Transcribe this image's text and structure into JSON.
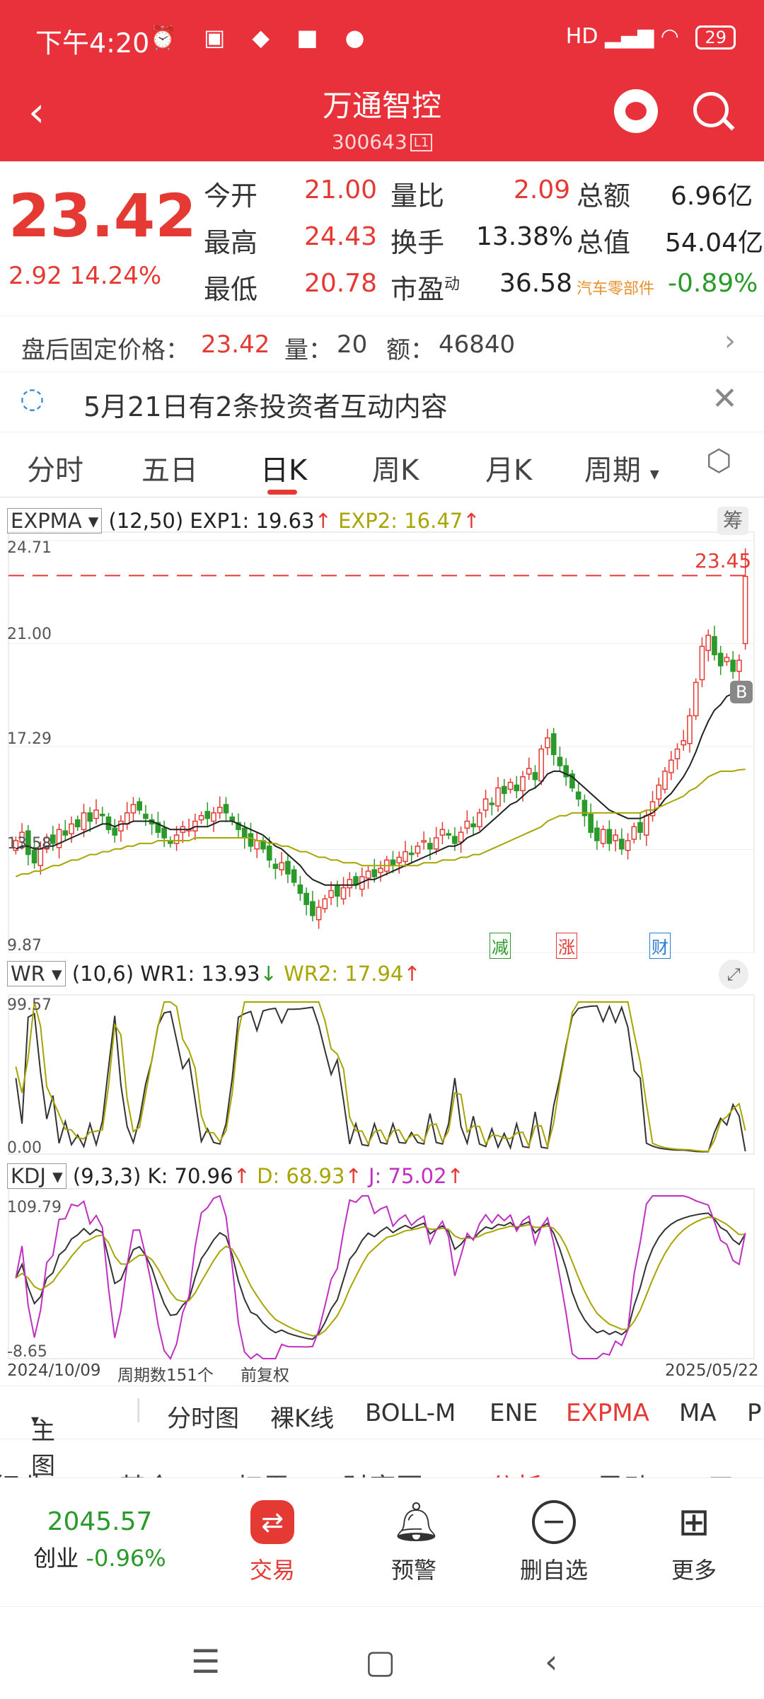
{
  "status_bar": {
    "time": "下午4:20",
    "battery": "29",
    "network": "HD"
  },
  "header": {
    "title": "万通智控",
    "code": "300643",
    "level": "L1"
  },
  "quote": {
    "price": "23.42",
    "change": "2.92",
    "change_pct": "14.24%",
    "rows": [
      {
        "l1": "今开",
        "v1": "21.00",
        "l2": "量比",
        "v2": "2.09",
        "l3": "总额",
        "v3": "6.96亿"
      },
      {
        "l1": "最高",
        "v1": "24.43",
        "l2": "换手",
        "v2": "13.38%",
        "l3": "总值",
        "v3": "54.04亿"
      },
      {
        "l1": "最低",
        "v1": "20.78",
        "l2": "市盈",
        "l2sup": "动",
        "v2": "36.58",
        "l3": "汽车零部件",
        "v3": "-0.89%"
      }
    ]
  },
  "after_hours": {
    "label": "盘后固定价格：",
    "price": "23.42",
    "vol_label": "量：",
    "vol": "20",
    "amt_label": "额：",
    "amt": "46840"
  },
  "notice": {
    "text": "5月21日有2条投资者互动内容"
  },
  "tabs": [
    "分时",
    "五日",
    "日K",
    "周K",
    "月K",
    "周期"
  ],
  "active_tab": "日K",
  "indicators": {
    "expma": {
      "name": "EXPMA",
      "params": "(12,50)",
      "l1": "EXP1: 19.63",
      "l2": "EXP2: 16.47",
      "badge": "筹"
    },
    "wr": {
      "name": "WR",
      "params": "(10,6)",
      "l1": "WR1: 13.93",
      "l2": "WR2: 17.94"
    },
    "kdj": {
      "name": "KDJ",
      "params": "(9,3,3)",
      "l1": "K: 70.96",
      "l2": "D: 68.93",
      "l3": "J: 75.02"
    }
  },
  "chart_data": {
    "type": "candlestick",
    "price_axis": {
      "ticks": [
        "24.71",
        "21.00",
        "17.29",
        "13.58",
        "9.87"
      ],
      "ylim": [
        9.87,
        24.71
      ]
    },
    "ref_line": "23.45",
    "markers": [
      "减",
      "涨",
      "财",
      "B"
    ],
    "wr_axis": [
      "99.57",
      "0.00"
    ],
    "kdj_axis": [
      "109.79",
      "-8.65"
    ],
    "start_date": "2024/10/09",
    "end_date": "2025/05/22",
    "period_count": "周期数151个",
    "adjust": "前复权",
    "closes": [
      13.9,
      14.2,
      13.4,
      13.1,
      13.6,
      14.0,
      13.8,
      14.3,
      14.1,
      14.5,
      14.4,
      14.9,
      14.6,
      15.0,
      14.8,
      14.3,
      14.1,
      14.6,
      14.9,
      15.2,
      15.0,
      14.7,
      14.5,
      14.2,
      14.0,
      13.8,
      14.1,
      14.4,
      14.3,
      14.6,
      14.8,
      14.7,
      14.9,
      15.1,
      14.9,
      14.6,
      14.3,
      14.0,
      13.7,
      13.9,
      13.6,
      13.2,
      12.9,
      13.1,
      12.7,
      12.4,
      12.0,
      11.6,
      11.2,
      11.5,
      11.8,
      12.1,
      11.9,
      12.2,
      12.5,
      12.3,
      12.6,
      12.8,
      12.6,
      12.9,
      13.2,
      13.0,
      13.3,
      13.5,
      13.4,
      13.7,
      13.9,
      13.6,
      14.0,
      14.3,
      14.1,
      13.8,
      14.2,
      14.6,
      14.4,
      14.9,
      15.4,
      15.2,
      15.8,
      15.6,
      16.0,
      15.7,
      16.2,
      16.5,
      16.1,
      17.2,
      17.6,
      17.0,
      16.6,
      16.2,
      15.8,
      15.4,
      14.8,
      14.2,
      13.9,
      14.3,
      13.8,
      14.1,
      13.6,
      13.9,
      14.4,
      14.2,
      14.8,
      15.3,
      15.9,
      16.4,
      16.8,
      17.2,
      17.5,
      18.4,
      19.6,
      20.9,
      21.3,
      20.6,
      20.2,
      20.5,
      20.0,
      20.4,
      23.42
    ],
    "exp1": [
      13.6,
      13.7,
      13.7,
      13.6,
      13.6,
      13.7,
      13.7,
      13.8,
      13.9,
      14.0,
      14.1,
      14.2,
      14.3,
      14.4,
      14.5,
      14.5,
      14.4,
      14.5,
      14.5,
      14.6,
      14.6,
      14.6,
      14.6,
      14.5,
      14.4,
      14.3,
      14.3,
      14.3,
      14.3,
      14.4,
      14.4,
      14.4,
      14.5,
      14.6,
      14.6,
      14.6,
      14.5,
      14.4,
      14.3,
      14.2,
      14.1,
      13.9,
      13.7,
      13.6,
      13.4,
      13.2,
      13.0,
      12.7,
      12.5,
      12.4,
      12.3,
      12.3,
      12.3,
      12.3,
      12.3,
      12.3,
      12.4,
      12.5,
      12.5,
      12.6,
      12.7,
      12.8,
      12.9,
      13.0,
      13.1,
      13.2,
      13.3,
      13.4,
      13.5,
      13.6,
      13.7,
      13.7,
      13.8,
      14.0,
      14.1,
      14.2,
      14.4,
      14.6,
      14.8,
      15.0,
      15.2,
      15.3,
      15.5,
      15.7,
      15.8,
      16.0,
      16.3,
      16.4,
      16.4,
      16.3,
      16.2,
      16.0,
      15.8,
      15.6,
      15.4,
      15.2,
      15.0,
      14.9,
      14.8,
      14.7,
      14.7,
      14.7,
      14.8,
      14.9,
      15.1,
      15.4,
      15.6,
      15.9,
      16.2,
      16.6,
      17.1,
      17.7,
      18.2,
      18.6,
      18.8,
      19.1,
      19.2,
      19.4,
      19.63
    ],
    "exp2": [
      12.6,
      12.7,
      12.7,
      12.8,
      12.8,
      12.9,
      13.0,
      13.0,
      13.1,
      13.2,
      13.2,
      13.3,
      13.4,
      13.4,
      13.5,
      13.5,
      13.6,
      13.6,
      13.7,
      13.7,
      13.8,
      13.8,
      13.8,
      13.9,
      13.9,
      13.9,
      13.9,
      13.9,
      13.9,
      14.0,
      14.0,
      14.0,
      14.0,
      14.0,
      14.0,
      14.0,
      14.0,
      14.0,
      14.0,
      13.9,
      13.9,
      13.8,
      13.8,
      13.7,
      13.7,
      13.6,
      13.5,
      13.5,
      13.4,
      13.3,
      13.3,
      13.2,
      13.2,
      13.1,
      13.1,
      13.1,
      13.0,
      13.0,
      13.0,
      13.0,
      13.0,
      13.0,
      13.0,
      13.0,
      13.0,
      13.0,
      13.1,
      13.1,
      13.1,
      13.2,
      13.2,
      13.2,
      13.3,
      13.3,
      13.4,
      13.4,
      13.5,
      13.6,
      13.7,
      13.8,
      13.9,
      14.0,
      14.1,
      14.2,
      14.3,
      14.4,
      14.6,
      14.7,
      14.8,
      14.8,
      14.9,
      14.9,
      14.9,
      14.9,
      14.9,
      14.9,
      14.9,
      14.9,
      14.9,
      14.9,
      14.9,
      14.9,
      15.0,
      15.0,
      15.1,
      15.2,
      15.3,
      15.4,
      15.5,
      15.7,
      15.8,
      16.0,
      16.2,
      16.3,
      16.4,
      16.4,
      16.4,
      16.45,
      16.47
    ]
  },
  "main_bar": {
    "label": "主图",
    "items": [
      "分时图",
      "裸K线",
      "BOLL-M",
      "ENE",
      "EXPMA",
      "MA",
      "P"
    ],
    "active": "EXPMA"
  },
  "cut_row": [
    "行业",
    "基金",
    "扫雷",
    "财富圈",
    "AI分析",
    "异动",
    "三"
  ],
  "nav": {
    "index_value": "2045.57",
    "index_name": "创业",
    "index_change": "-0.96%",
    "items": [
      {
        "label": "交易",
        "icon": "trade-icon"
      },
      {
        "label": "预警",
        "icon": "bell-icon"
      },
      {
        "label": "删自选",
        "icon": "minus-circle-icon"
      },
      {
        "label": "更多",
        "icon": "grid-icon"
      }
    ]
  },
  "colors": {
    "up": "#e53a34",
    "down": "#2a9a2a",
    "exp1": "#222222",
    "exp2": "#a8a400",
    "j": "#c030c0",
    "header": "#e8313a"
  }
}
